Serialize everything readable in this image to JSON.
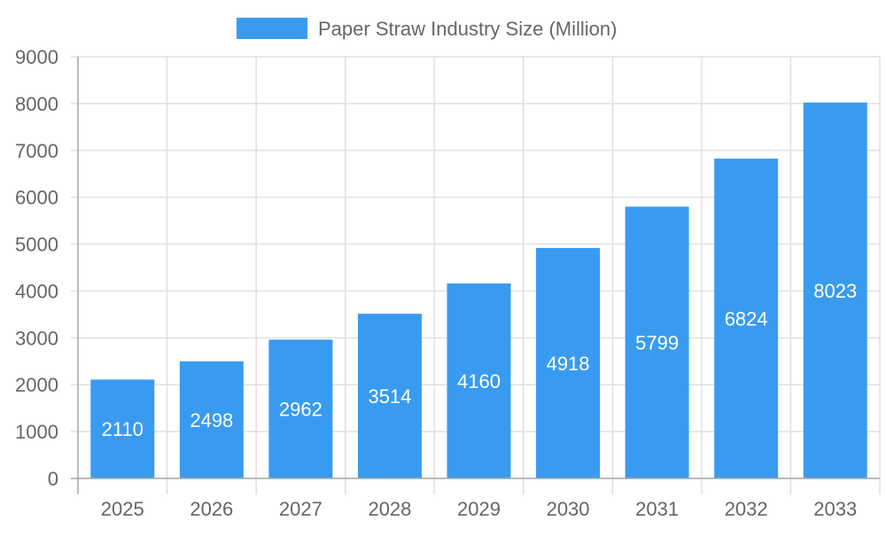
{
  "chart_data": {
    "type": "bar",
    "title": "",
    "xlabel": "",
    "ylabel": "",
    "categories": [
      "2025",
      "2026",
      "2027",
      "2028",
      "2029",
      "2030",
      "2031",
      "2032",
      "2033"
    ],
    "series": [
      {
        "name": "Paper Straw Industry Size (Million)",
        "values": [
          2110,
          2498,
          2962,
          3514,
          4160,
          4918,
          5799,
          6824,
          8023
        ],
        "color": "#399bf0"
      }
    ],
    "ylim": [
      0,
      9000
    ],
    "yticks": [
      0,
      1000,
      2000,
      3000,
      4000,
      5000,
      6000,
      7000,
      8000,
      9000
    ],
    "grid": true,
    "legend": "top-center",
    "data_labels": true
  }
}
